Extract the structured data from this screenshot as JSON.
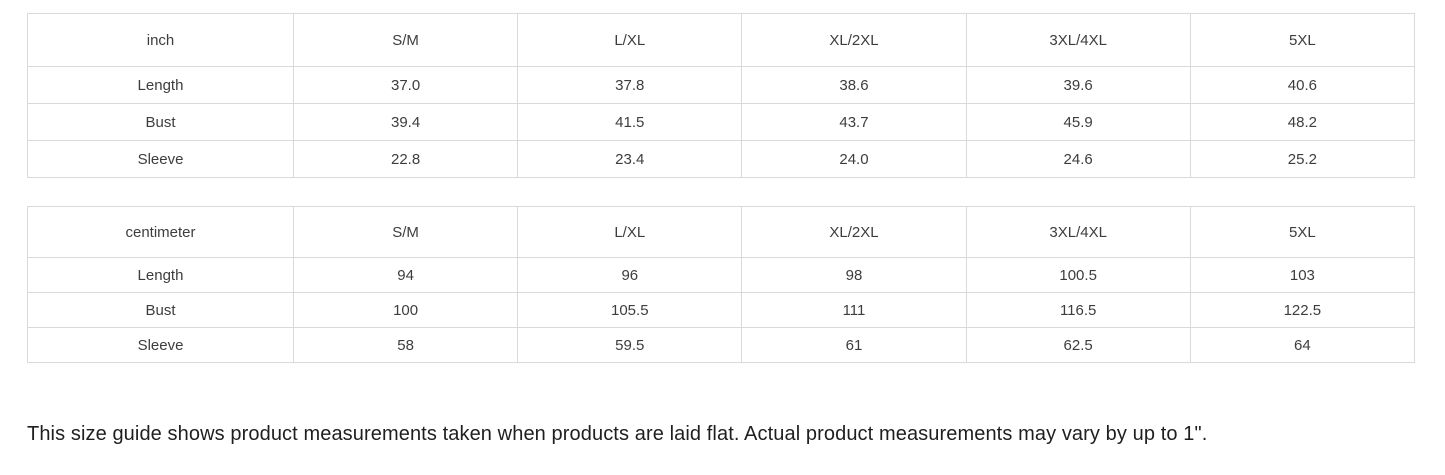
{
  "tables": [
    {
      "unit_label": "inch",
      "size_columns": [
        "S/M",
        "L/XL",
        "XL/2XL",
        "3XL/4XL",
        "5XL"
      ],
      "rows": [
        {
          "label": "Length",
          "values": [
            "37.0",
            "37.8",
            "38.6",
            "39.6",
            "40.6"
          ]
        },
        {
          "label": "Bust",
          "values": [
            "39.4",
            "41.5",
            "43.7",
            "45.9",
            "48.2"
          ]
        },
        {
          "label": "Sleeve",
          "values": [
            "22.8",
            "23.4",
            "24.0",
            "24.6",
            "25.2"
          ]
        }
      ]
    },
    {
      "unit_label": "centimeter",
      "size_columns": [
        "S/M",
        "L/XL",
        "XL/2XL",
        "3XL/4XL",
        "5XL"
      ],
      "rows": [
        {
          "label": "Length",
          "values": [
            "94",
            "96",
            "98",
            "100.5",
            "103"
          ]
        },
        {
          "label": "Bust",
          "values": [
            "100",
            "105.5",
            "111",
            "116.5",
            "122.5"
          ]
        },
        {
          "label": "Sleeve",
          "values": [
            "58",
            "59.5",
            "61",
            "62.5",
            "64"
          ]
        }
      ]
    }
  ],
  "footer_note": "This size guide shows product measurements taken when products are laid flat. Actual product measurements may vary by up to 1\".",
  "colors": {
    "table_border": "#d9d9d9",
    "table_text": "#3d3d3d",
    "note_text": "#1f1f1f"
  },
  "chart_data": [
    {
      "type": "table",
      "title": "inch",
      "columns": [
        "inch",
        "S/M",
        "L/XL",
        "XL/2XL",
        "3XL/4XL",
        "5XL"
      ],
      "rows": [
        [
          "Length",
          37.0,
          37.8,
          38.6,
          39.6,
          40.6
        ],
        [
          "Bust",
          39.4,
          41.5,
          43.7,
          45.9,
          48.2
        ],
        [
          "Sleeve",
          22.8,
          23.4,
          24.0,
          24.6,
          25.2
        ]
      ]
    },
    {
      "type": "table",
      "title": "centimeter",
      "columns": [
        "centimeter",
        "S/M",
        "L/XL",
        "XL/2XL",
        "3XL/4XL",
        "5XL"
      ],
      "rows": [
        [
          "Length",
          94,
          96,
          98,
          100.5,
          103
        ],
        [
          "Bust",
          100,
          105.5,
          111,
          116.5,
          122.5
        ],
        [
          "Sleeve",
          58,
          59.5,
          61,
          62.5,
          64
        ]
      ]
    }
  ]
}
